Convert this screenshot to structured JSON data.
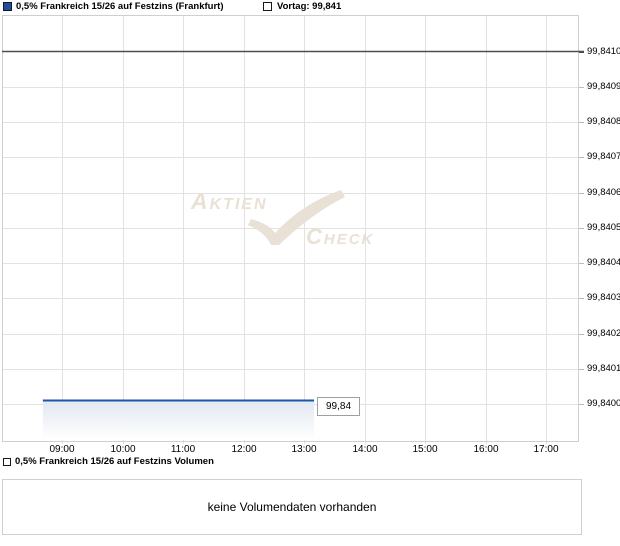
{
  "header": {
    "series_legend": "0,5% Frankreich 15/26 auf Festzins (Frankfurt)",
    "vortag_legend": "Vortag: 99,841"
  },
  "chart_data": {
    "type": "line",
    "title": "0,5% Frankreich 15/26 auf Festzins (Frankfurt)",
    "x_ticks": [
      "09:00",
      "10:00",
      "11:00",
      "12:00",
      "13:00",
      "14:00",
      "15:00",
      "16:00",
      "17:00"
    ],
    "y_ticks": [
      "99,8410",
      "99,8409",
      "99,8408",
      "99,8407",
      "99,8406",
      "99,8405",
      "99,8404",
      "99,8403",
      "99,8402",
      "99,8401",
      "99,8400"
    ],
    "y_max": 99.841,
    "y_step": 0.0001,
    "xlabel": "",
    "ylabel": "",
    "grid": true,
    "legend_position": "top",
    "series": [
      {
        "name": "0,5% Frankreich 15/26 auf Festzins (Frankfurt)",
        "color": "#1b56a8",
        "shape": "flat-line-with-area-fill",
        "start": "08:41",
        "end": "13:10",
        "value": 99.84
      }
    ],
    "previous_close": {
      "label": "Vortag",
      "value": 99.841,
      "color": "#4d4d4d"
    },
    "last_price_label": "99,84",
    "colors": {
      "gridline": "#e2e2e2",
      "border": "#cfcfcf",
      "fill_top": "#e2e8f1",
      "fill_bottom": "#ffffff"
    }
  },
  "watermark": {
    "part1": "Aktien",
    "part2": "Check"
  },
  "volume": {
    "legend": "0,5% Frankreich 15/26 auf Festzins Volumen",
    "message": "keine Volumendaten vorhanden"
  }
}
